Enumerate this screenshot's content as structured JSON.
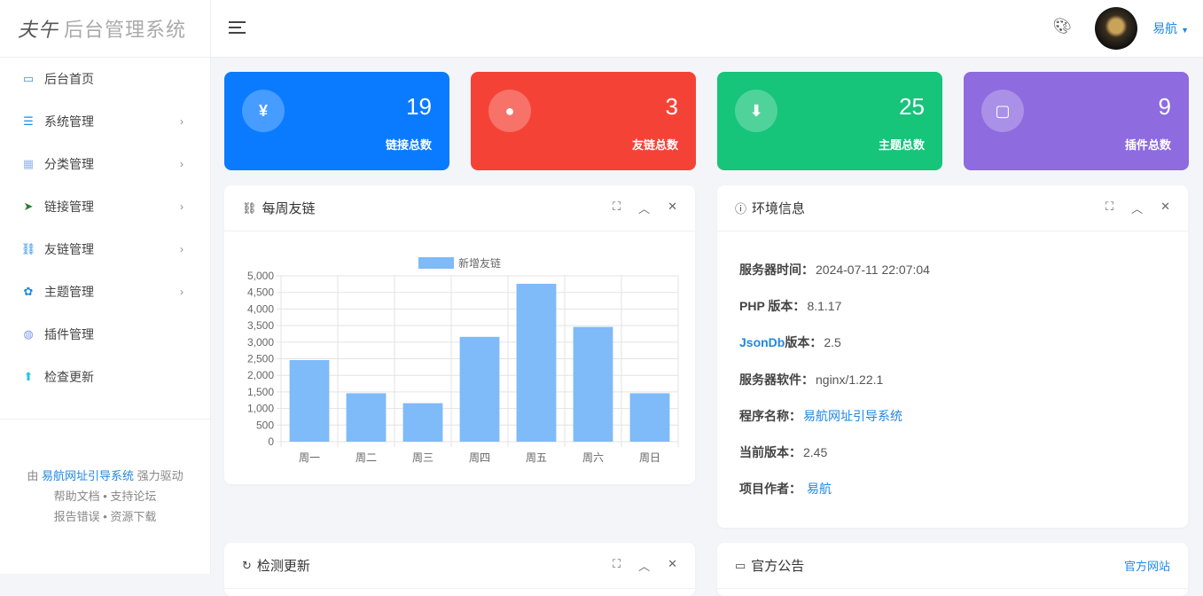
{
  "sidebar": {
    "logo_mark": "夫午",
    "logo_text": "后台管理系统",
    "items": [
      {
        "label": "后台首页",
        "icon": "monitor-icon",
        "color": "#4a90c8",
        "chev": false
      },
      {
        "label": "系统管理",
        "icon": "sliders-icon",
        "color": "#1e88e5",
        "chev": true
      },
      {
        "label": "分类管理",
        "icon": "grid-icon",
        "color": "#9bb8e8",
        "chev": true
      },
      {
        "label": "链接管理",
        "icon": "send-icon",
        "color": "#2e7d32",
        "chev": true
      },
      {
        "label": "友链管理",
        "icon": "link-icon",
        "color": "#1e88e5",
        "chev": true
      },
      {
        "label": "主题管理",
        "icon": "palette-icon",
        "color": "#1e88e5",
        "chev": true
      },
      {
        "label": "插件管理",
        "icon": "plugin-icon",
        "color": "#7c9be8",
        "chev": false
      },
      {
        "label": "检查更新",
        "icon": "upgrade-icon",
        "color": "#26c6da",
        "chev": false
      }
    ],
    "footer": {
      "prefix": "由",
      "link": "易航网址引导系统",
      "suffix": "强力驱动",
      "l1a": "帮助文档",
      "l1b": "支持论坛",
      "l2a": "报告错误",
      "l2b": "资源下载",
      "sep": "•"
    }
  },
  "header": {
    "user": "易航",
    "caret": "▼"
  },
  "stats": [
    {
      "value": "19",
      "label": "链接总数",
      "icon": "yen-icon",
      "glyph": "¥",
      "color": "#0a7bff"
    },
    {
      "value": "3",
      "label": "友链总数",
      "icon": "user-icon",
      "glyph": "●",
      "color": "#f44336"
    },
    {
      "value": "25",
      "label": "主题总数",
      "icon": "download-icon",
      "glyph": "⬇",
      "color": "#16c47a"
    },
    {
      "value": "9",
      "label": "插件总数",
      "icon": "comment-icon",
      "glyph": "▢",
      "color": "#8e6bdf"
    }
  ],
  "panels": {
    "weekly": "每周友链",
    "env": "环境信息",
    "update": "检测更新",
    "notice": "官方公告",
    "official_site": "官方网站"
  },
  "env": [
    {
      "k": "服务器时间：",
      "v": "2024-07-11 22:07:04"
    },
    {
      "k": "PHP 版本：",
      "v": "8.1.17"
    },
    {
      "k": "JsonDb",
      "k2": " 版本：",
      "v": "2.5"
    },
    {
      "k": "服务器软件：",
      "v": "nginx/1.22.1"
    },
    {
      "k": "程序名称：",
      "v": "易航网址引导系统"
    },
    {
      "k": "当前版本：",
      "v": "2.45"
    },
    {
      "k": "项目作者：",
      "v": "易航"
    }
  ],
  "chart_data": {
    "type": "bar",
    "categories": [
      "周一",
      "周二",
      "周三",
      "周四",
      "周五",
      "周六",
      "周日"
    ],
    "series": [
      {
        "name": "新增友链",
        "values": [
          2460,
          1460,
          1160,
          3160,
          4760,
          3460,
          1460
        ],
        "color": "#7fbaf9"
      }
    ],
    "ylim": [
      0,
      5000
    ],
    "yticks": [
      "0",
      "500",
      "1,000",
      "1,500",
      "2,000",
      "2,500",
      "3,000",
      "3,500",
      "4,000",
      "4,500",
      "5,000"
    ],
    "grid": true,
    "legend": "top"
  }
}
